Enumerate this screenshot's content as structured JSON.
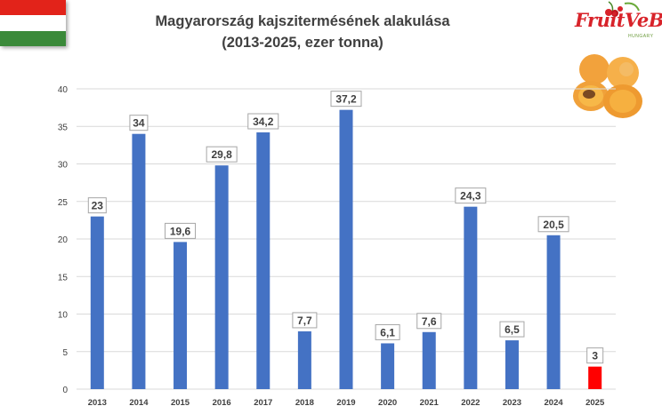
{
  "header": {
    "title_line1": "Magyarország kajszitermésének alakulása",
    "title_line2": "(2013-2025, ezer tonna)"
  },
  "logo": {
    "name": "FruitVeB",
    "tagline": "HUNGARY"
  },
  "flag": {
    "colors": [
      "#e2231a",
      "#ffffff",
      "#3b8a3a"
    ]
  },
  "images": {
    "fruit": "apricots-icon"
  },
  "chart_data": {
    "type": "bar",
    "title": "Magyarország kajszitermésének alakulása (2013-2025, ezer tonna)",
    "categories": [
      "2013",
      "2014",
      "2015",
      "2016",
      "2017",
      "2018",
      "2019",
      "2020",
      "2021",
      "2022",
      "2023",
      "2024",
      "2025"
    ],
    "values": [
      23,
      34,
      19.6,
      29.8,
      34.2,
      7.7,
      37.2,
      6.1,
      7.6,
      24.3,
      6.5,
      20.5,
      3
    ],
    "data_labels": [
      "23",
      "34",
      "19,6",
      "29,8",
      "34,2",
      "7,7",
      "37,2",
      "6,1",
      "7,6",
      "24,3",
      "6,5",
      "20,5",
      "3"
    ],
    "y_ticks": [
      "0",
      "5",
      "10",
      "15",
      "20",
      "25",
      "30",
      "35",
      "40"
    ],
    "ylim": [
      0,
      40
    ],
    "grid": true,
    "legend": "none",
    "colors": {
      "bar": "#4472c4",
      "highlight": "#ff0000",
      "highlight_category": "2025",
      "grid": "#d9d9d9"
    }
  }
}
